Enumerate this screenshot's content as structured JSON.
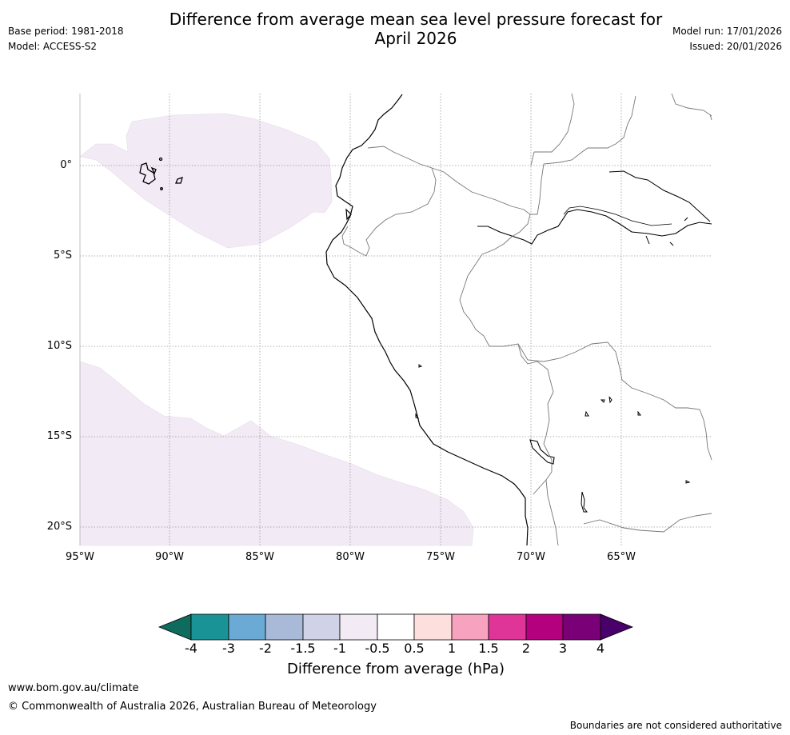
{
  "title_line1": "Difference from average mean sea level pressure forecast for",
  "title_line2": "April 2026",
  "base_period": "Base period: 1981-2018",
  "model": "Model: ACCESS-S2",
  "model_run": "Model run: 17/01/2026",
  "issued": "Issued: 20/01/2026",
  "lat_labels": [
    "0°",
    "5°S",
    "10°S",
    "15°S",
    "20°S"
  ],
  "lon_labels": [
    "95°W",
    "90°W",
    "85°W",
    "80°W",
    "75°W",
    "70°W",
    "65°W"
  ],
  "legend": {
    "title": "Difference from average (hPa)",
    "ticks": [
      "-4",
      "-3",
      "-2",
      "-1.5",
      "-1",
      "-0.5",
      "0.5",
      "1",
      "1.5",
      "2",
      "3",
      "4"
    ],
    "colors": [
      "#0e6b5e",
      "#1a9396",
      "#6aaad4",
      "#a9bad9",
      "#d0d2e8",
      "#f2eaf4",
      "#ffffff",
      "#fde0de",
      "#f7a3bf",
      "#e03598",
      "#b4007e",
      "#7a0078",
      "#49006a"
    ]
  },
  "map": {
    "anomaly_fill": "#f2eaf4",
    "lat_range_deg": [
      -21,
      4
    ],
    "lon_range_deg": [
      -95,
      -60
    ]
  },
  "website": "www.bom.gov.au/climate",
  "copyright": "© Commonwealth of Australia 2026, Australian Bureau of Meteorology",
  "disclaimer": "Boundaries are not considered authoritative"
}
